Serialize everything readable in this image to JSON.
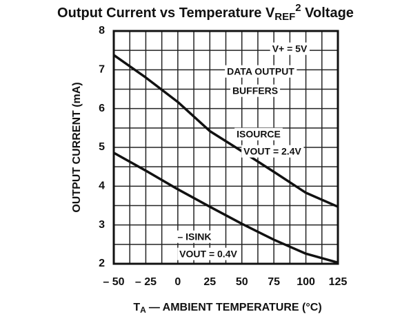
{
  "chart_data": {
    "type": "line",
    "title": [
      "Output Current vs Temperature V",
      "REF",
      "2",
      " Voltage"
    ],
    "ylabel": "OUTPUT CURRENT (mA)",
    "xlabel": [
      "T",
      "A",
      "— AMBIENT TEMPERATURE (°C)"
    ],
    "x": [
      -50,
      -25,
      0,
      25,
      50,
      75,
      100,
      125
    ],
    "series": [
      {
        "color": "#111111",
        "values": [
          7.38,
          6.8,
          6.17,
          5.42,
          4.9,
          4.37,
          3.83,
          3.47
        ]
      },
      {
        "color": "#111111",
        "values": [
          4.86,
          4.4,
          3.92,
          3.47,
          3.03,
          2.62,
          2.26,
          2.03
        ]
      }
    ],
    "xlim": [
      -50,
      125
    ],
    "ylim": [
      2,
      8
    ],
    "xticks": [
      {
        "value": -50,
        "label": "– 50"
      },
      {
        "value": -25,
        "label": "– 25"
      },
      0,
      25,
      50,
      75,
      100,
      125
    ],
    "yticks": [
      2,
      3,
      4,
      5,
      6,
      7,
      8
    ],
    "xminorticks": [
      -37.5,
      -12.5,
      12.5,
      37.5,
      62.5,
      87.5,
      112.5
    ],
    "yminorticks": [
      2.5,
      3.5,
      4.5,
      5.5,
      6.5,
      7.5
    ],
    "grid": true,
    "annotations": [
      "V+ = 5V",
      "DATA OUTPUT",
      "BUFFERS",
      "ISOURCE",
      "VOUT = 2.4V",
      "– ISINK",
      "VOUT = 0.4V"
    ]
  }
}
